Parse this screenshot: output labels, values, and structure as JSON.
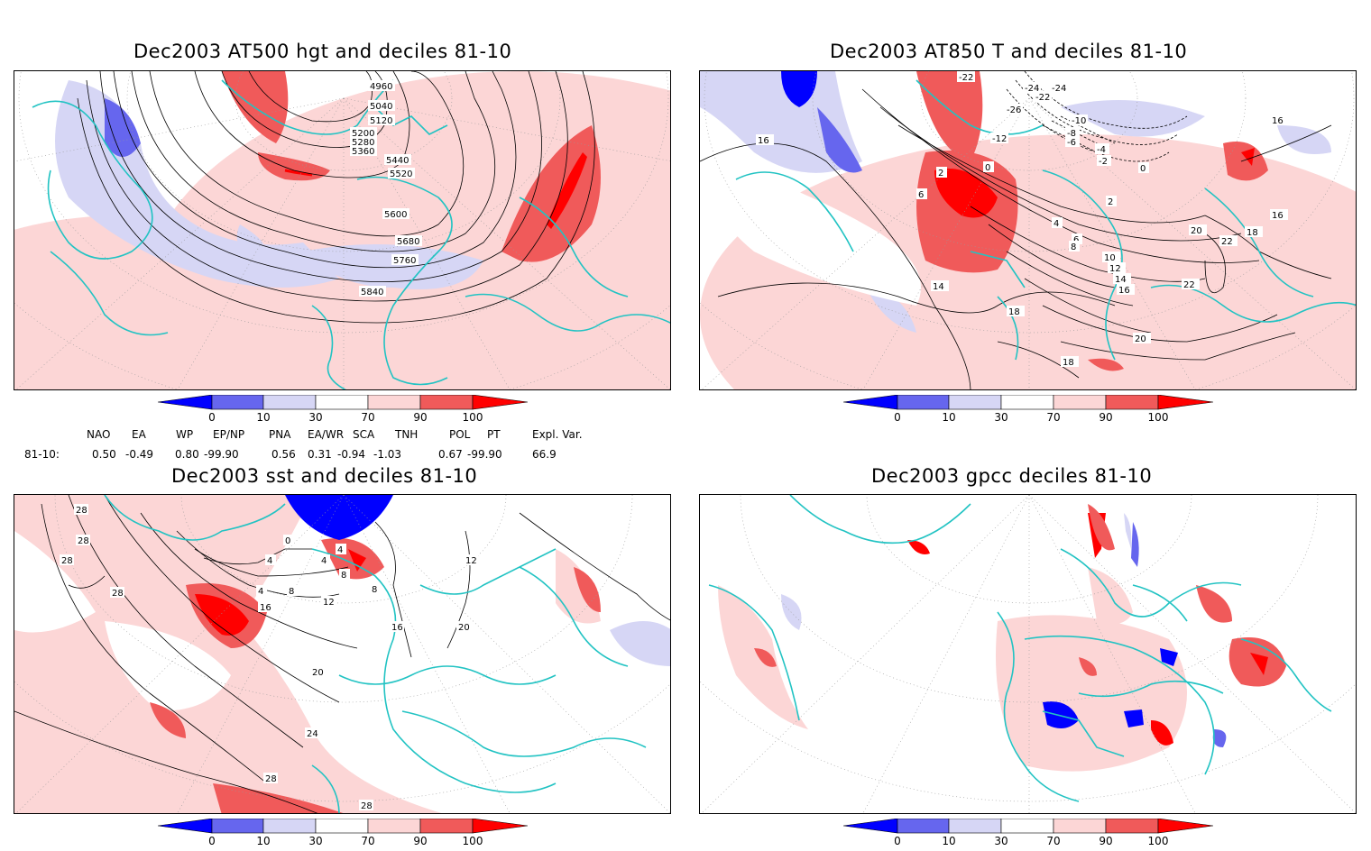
{
  "panels": [
    {
      "id": "hgt500",
      "title": "Dec2003 AT500 hgt and deciles 81-10",
      "variable": "500 hPa geopotential height",
      "contour_labels": [
        "4960",
        "5040",
        "5120",
        "5200",
        "5280",
        "5360",
        "5440",
        "5520",
        "5600",
        "5680",
        "5760",
        "5840"
      ]
    },
    {
      "id": "t850",
      "title": "Dec2003 AT850 T and deciles 81-10",
      "variable": "850 hPa temperature",
      "contour_labels": [
        "-26",
        "-24",
        "-24",
        "-22",
        "-22",
        "-12",
        "-10",
        "-8",
        "-6",
        "-4",
        "-2",
        "0",
        "0",
        "2",
        "2",
        "4",
        "6",
        "6",
        "8",
        "10",
        "12",
        "14",
        "14",
        "16",
        "16",
        "16",
        "16",
        "18",
        "18",
        "18",
        "20",
        "20",
        "22",
        "22"
      ]
    },
    {
      "id": "sst",
      "title": "Dec2003 sst and deciles 81-10",
      "variable": "sea surface temperature",
      "contour_labels": [
        "28",
        "28",
        "28",
        "28",
        "0",
        "4",
        "4",
        "4",
        "8",
        "8",
        "12",
        "12",
        "16",
        "16",
        "20",
        "20",
        "24",
        "28",
        "28",
        "4",
        "8"
      ]
    },
    {
      "id": "gpcc",
      "title": "Dec2003 gpcc deciles 81-10",
      "variable": "precipitation",
      "contour_labels": []
    }
  ],
  "colorbar": {
    "tick_labels": [
      "0",
      "10",
      "30",
      "70",
      "90",
      "100"
    ],
    "colors": [
      "#0000ff",
      "#6666ee",
      "#d6d6f5",
      "#ffffff",
      "#fcd6d6",
      "#f05a5a",
      "#ff0000"
    ]
  },
  "teleconnection": {
    "headers": [
      "NAO",
      "EA",
      "WP",
      "EP/NP",
      "PNA",
      "EA/WR",
      "SCA",
      "TNH",
      "POL",
      "PT",
      "Expl. Var."
    ],
    "row_label": "81-10:",
    "values": [
      "0.50",
      "-0.49",
      "0.80",
      "-99.90",
      "0.56",
      "0.31",
      "-0.94",
      "-1.03",
      "0.67",
      "-99.90",
      "66.9"
    ]
  },
  "colors": {
    "coastline": "#22c3c3",
    "warm_light": "#fcd6d6",
    "warm_mid": "#f05a5a",
    "warm_strong": "#ff0000",
    "cold_light": "#d6d6f5",
    "cold_mid": "#6666ee",
    "cold_strong": "#0000ff"
  }
}
